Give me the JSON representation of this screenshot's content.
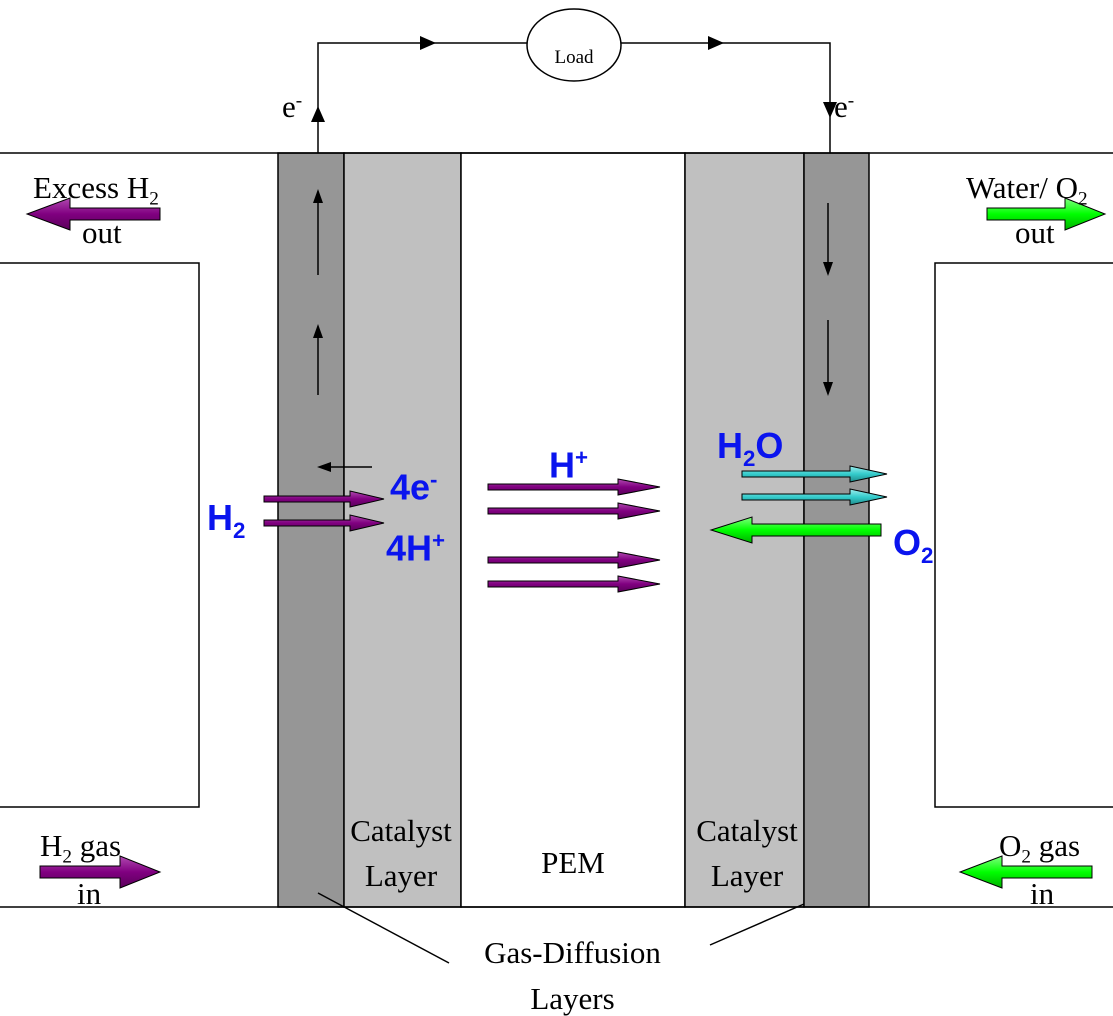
{
  "circuit": {
    "load_label": "Load",
    "electron_left": "e",
    "electron_right": "e",
    "electron_sup": "-"
  },
  "anode_side": {
    "excess_out_line1": "Excess H",
    "excess_out_sub": "2",
    "excess_out_line2": "out",
    "gas_in_prefix": "H",
    "gas_in_sub": "2",
    "gas_in_suffix": " gas",
    "gas_in_line2": "in"
  },
  "cathode_side": {
    "water_out_line1": "Water/ O",
    "water_out_sub": "2",
    "water_out_line2": "out",
    "gas_in_prefix": "O",
    "gas_in_sub": "2",
    "gas_in_suffix": " gas",
    "gas_in_line2": "in"
  },
  "species": {
    "h2": "H",
    "h2_sub": "2",
    "electrons": "4e",
    "electrons_sup": "-",
    "protons": "4H",
    "protons_sup": "+",
    "proton_flow": "H",
    "proton_flow_sup": "+",
    "water": "H",
    "water_sub": "2",
    "water_suffix": "O",
    "o2": "O",
    "o2_sub": "2"
  },
  "layers": {
    "catalyst_left_line1": "Catalyst",
    "catalyst_left_line2": "Layer",
    "pem": "PEM",
    "catalyst_right_line1": "Catalyst",
    "catalyst_right_line2": "Layer",
    "gdl_line1": "Gas-Diffusion",
    "gdl_line2": "Layers"
  },
  "colors": {
    "gdl": "#969696",
    "catalyst": "#c0c0c0",
    "hydrogen_arrow": "#800080",
    "oxygen_arrow": "#00ff00",
    "water_arrow": "#33cccc",
    "species_text": "#0a14ee"
  }
}
